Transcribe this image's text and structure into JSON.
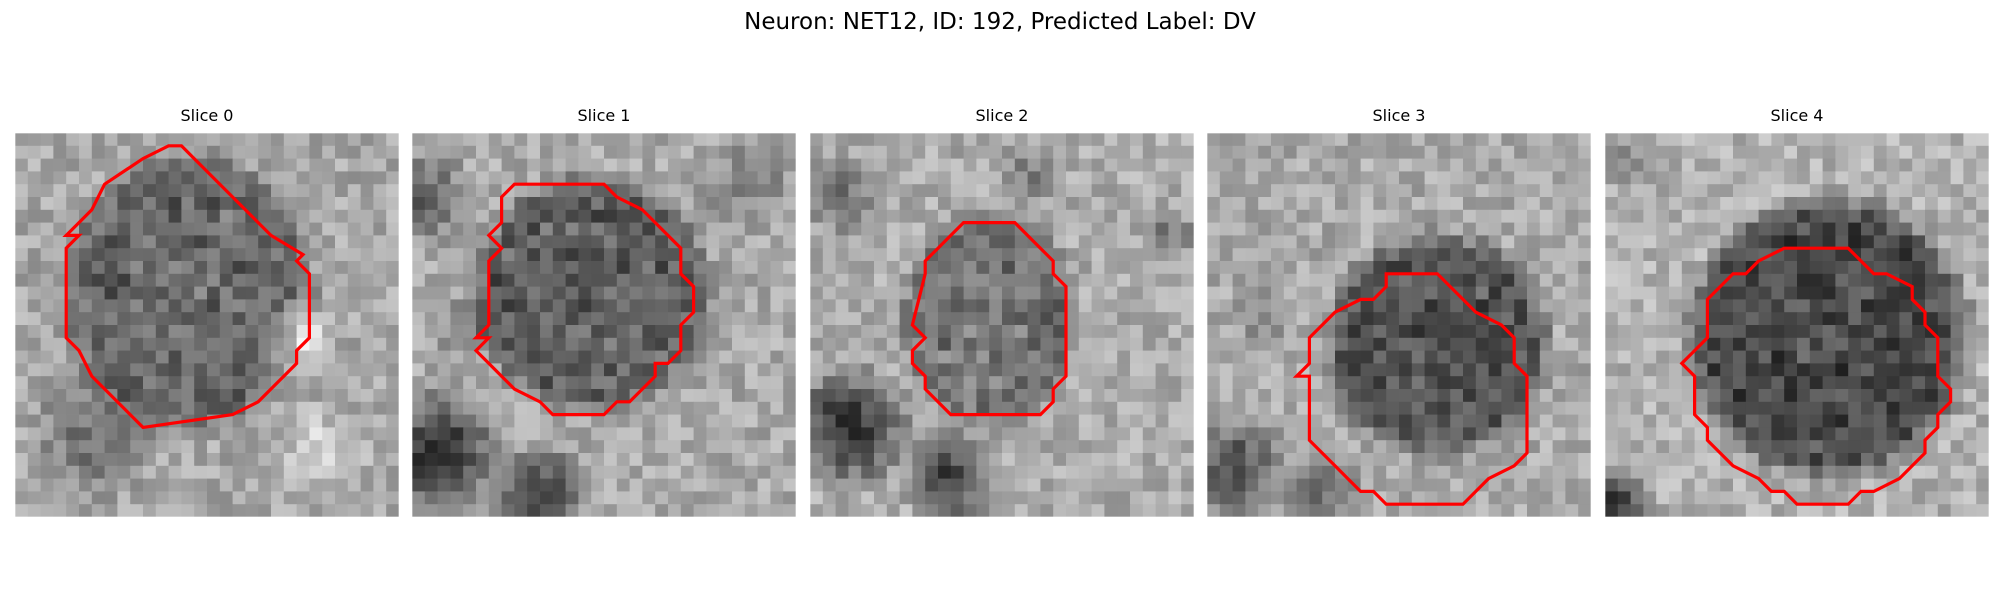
{
  "figure": {
    "title": "Neuron: NET12, ID: 192, Predicted Label: DV"
  },
  "contour_color": "#ff0000",
  "panels": [
    {
      "title": "Slice 0"
    },
    {
      "title": "Slice 1"
    },
    {
      "title": "Slice 2"
    },
    {
      "title": "Slice 3"
    },
    {
      "title": "Slice 4"
    }
  ]
}
